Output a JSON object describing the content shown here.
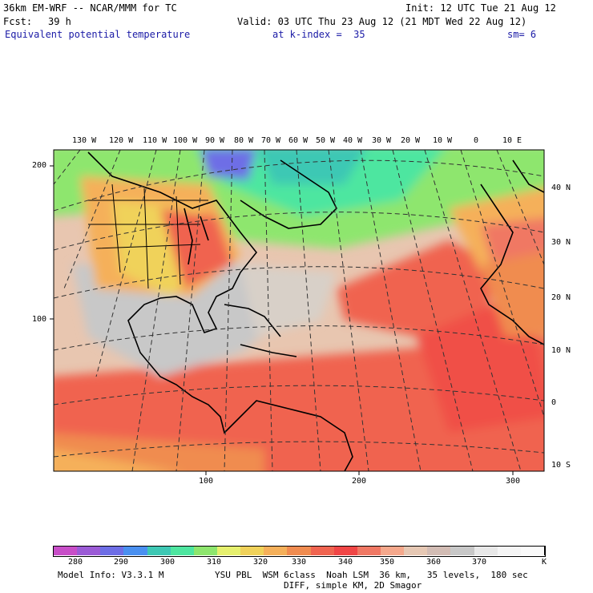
{
  "header": {
    "model": "36km EM-WRF -- NCAR/MMM for TC",
    "init": "Init: 12 UTC Tue 21 Aug 12",
    "fcst_label": "Fcst:",
    "fcst_value": "39 h",
    "valid": "Valid: 03 UTC Thu 23 Aug 12 (21 MDT Wed 22 Aug 12)",
    "field": "Equivalent potential temperature",
    "level": "at k-index =  35",
    "smooth": "sm= 6"
  },
  "map": {
    "top_lon_labels": [
      "130 W",
      "120 W",
      "110 W",
      "100 W",
      "90 W",
      "80 W",
      "70 W",
      "60 W",
      "50 W",
      "40 W",
      "30 W",
      "20 W",
      "10 W",
      "0",
      "10 E"
    ],
    "right_lat_labels": [
      "40 N",
      "30 N",
      "20 N",
      "10 N",
      "0",
      "10 S"
    ],
    "left_grid_labels": [
      "200",
      "100"
    ],
    "bottom_grid_labels": [
      "100",
      "200",
      "300"
    ]
  },
  "colorbar": {
    "labels": [
      "280",
      "290",
      "300",
      "310",
      "320",
      "330",
      "340",
      "350",
      "360",
      "370"
    ],
    "unit": "K",
    "colors": [
      "#c84ec8",
      "#9b5bd6",
      "#6e6ee6",
      "#4a90f0",
      "#3ec8b4",
      "#4ee6a0",
      "#8ee66e",
      "#e6f06e",
      "#f0d25a",
      "#f5b05a",
      "#f08c50",
      "#f06450",
      "#f04646",
      "#f07864",
      "#f5a88c",
      "#e6c8b4",
      "#d2bcb4",
      "#c8c8c8",
      "#e8e8e8",
      "#f5f5f5",
      "#fafafa"
    ]
  },
  "footer": {
    "line1_left": "Model Info: V3.3.1 M",
    "line1_right": "YSU PBL  WSM 6class  Noah LSM  36 km,   35 levels,  180 sec",
    "line2": "DIFF, simple KM, 2D Smagor"
  }
}
